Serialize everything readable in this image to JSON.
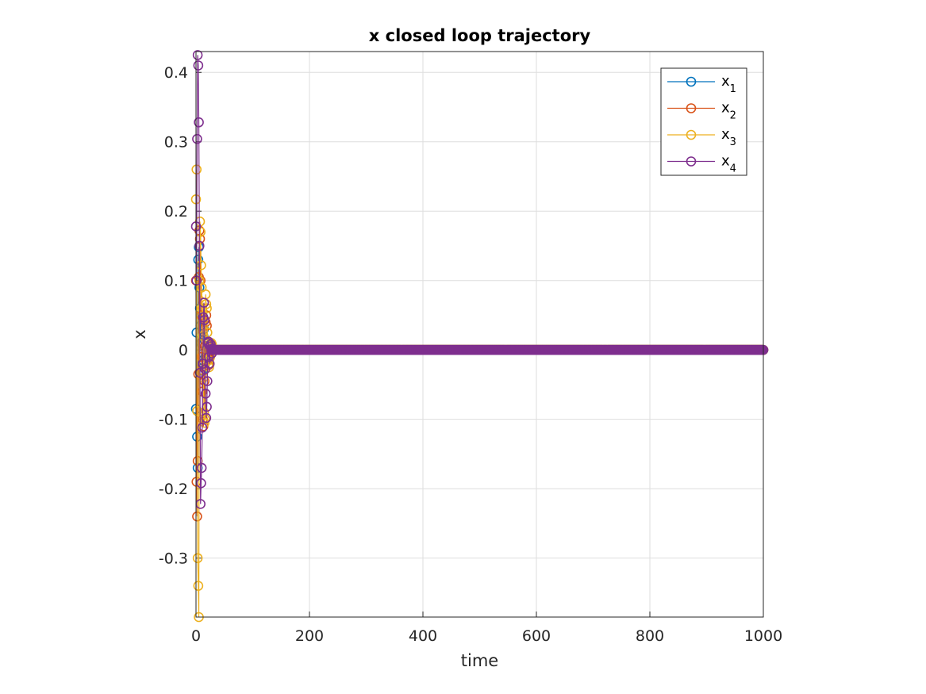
{
  "chart_data": {
    "type": "line",
    "title": "x closed loop trajectory",
    "xlabel": "time",
    "ylabel": "x",
    "xlim": [
      0,
      1000
    ],
    "ylim": [
      -0.385,
      0.43
    ],
    "xticks": [
      0,
      200,
      400,
      600,
      800,
      1000
    ],
    "xtick_labels": [
      "0",
      "200",
      "400",
      "600",
      "800",
      "1000"
    ],
    "yticks": [
      -0.3,
      -0.2,
      -0.1,
      0,
      0.1,
      0.2,
      0.3,
      0.4
    ],
    "ytick_labels": [
      "-0.3",
      "-0.2",
      "-0.1",
      "0",
      "0.1",
      "0.2",
      "0.3",
      "0.4"
    ],
    "grid": true,
    "legend_position": "top-right",
    "marker": "circle",
    "x_step": 1,
    "transient_x": [
      0,
      1,
      2,
      3,
      4,
      5,
      6,
      7,
      8,
      9,
      10,
      11,
      12,
      13,
      14,
      15,
      16,
      17,
      18,
      19,
      20,
      21,
      22,
      23,
      24,
      25,
      26,
      27,
      28,
      29,
      30
    ],
    "series": [
      {
        "name": "x",
        "subscript": "1",
        "color": "#0072BD",
        "transient": [
          -0.085,
          0.025,
          -0.125,
          -0.17,
          0.13,
          0.148,
          0.09,
          0.06,
          0.035,
          0.01,
          -0.02,
          -0.03,
          -0.015,
          0.02,
          0.03,
          0.015,
          0.005,
          -0.01,
          -0.015,
          -0.008,
          0.002,
          0.006,
          0.005,
          0.002,
          -0.001,
          -0.003,
          -0.002,
          0.0,
          0.001,
          0.001,
          0.0
        ]
      },
      {
        "name": "x",
        "subscript": "2",
        "color": "#D95319",
        "transient": [
          0.1,
          -0.19,
          -0.24,
          -0.16,
          -0.035,
          0.105,
          0.172,
          0.16,
          0.1,
          0.05,
          -0.01,
          -0.06,
          -0.1,
          -0.11,
          -0.09,
          -0.045,
          0.005,
          0.04,
          0.05,
          0.035,
          0.01,
          -0.01,
          -0.022,
          -0.02,
          -0.012,
          -0.002,
          0.005,
          0.006,
          0.003,
          0.0,
          -0.001
        ]
      },
      {
        "name": "x",
        "subscript": "3",
        "color": "#EDB120",
        "transient": [
          0.217,
          0.26,
          -0.088,
          -0.3,
          -0.34,
          -0.385,
          0.1,
          0.185,
          0.17,
          0.122,
          0.09,
          0.06,
          0.02,
          -0.04,
          -0.09,
          -0.105,
          -0.1,
          0.08,
          0.066,
          0.06,
          0.025,
          0.0,
          -0.015,
          -0.025,
          -0.02,
          -0.01,
          0.005,
          0.01,
          0.008,
          0.003,
          0.0
        ]
      },
      {
        "name": "x",
        "subscript": "4",
        "color": "#7E2F8E",
        "transient": [
          0.178,
          0.1,
          0.304,
          0.425,
          0.41,
          0.328,
          0.15,
          -0.033,
          -0.222,
          -0.192,
          -0.17,
          -0.112,
          -0.02,
          0.047,
          0.068,
          0.043,
          -0.028,
          -0.063,
          -0.098,
          -0.082,
          -0.045,
          0.01,
          0.012,
          -0.01,
          -0.02,
          0.005,
          0.008,
          0.0,
          -0.005,
          0.002,
          0.0
        ]
      }
    ],
    "steady_state_value": 0
  }
}
